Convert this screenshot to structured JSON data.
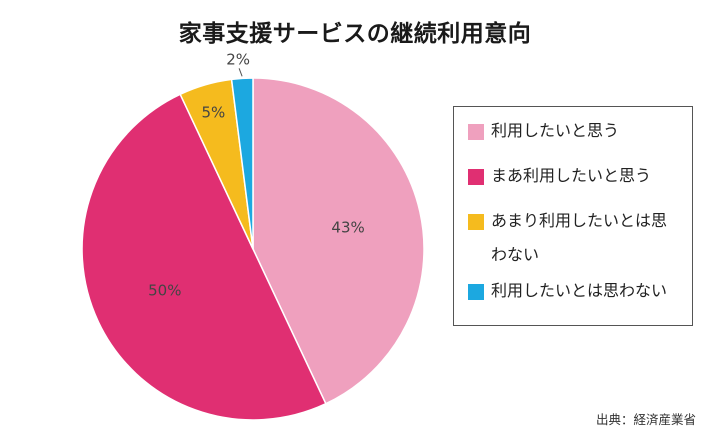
{
  "chart_data": {
    "type": "pie",
    "title": "家事支援サービスの継続利用意向",
    "slices": [
      {
        "label": "利用したいと思う",
        "value": 43,
        "value_label": "43%",
        "color": "#EFA0BE"
      },
      {
        "label": "まあ利用したいと思う",
        "value": 50,
        "value_label": "50%",
        "color": "#E02F72"
      },
      {
        "label": "あまり利用したいとは思わない",
        "value": 5,
        "value_label": "5%",
        "color": "#F5BB1E"
      },
      {
        "label": "利用したいとは思わない",
        "value": 2,
        "value_label": "2%",
        "color": "#1CA8E0"
      }
    ],
    "start": "12 o'clock",
    "direction": "clockwise",
    "legend_position": "right"
  },
  "source": "出典：経済産業省"
}
